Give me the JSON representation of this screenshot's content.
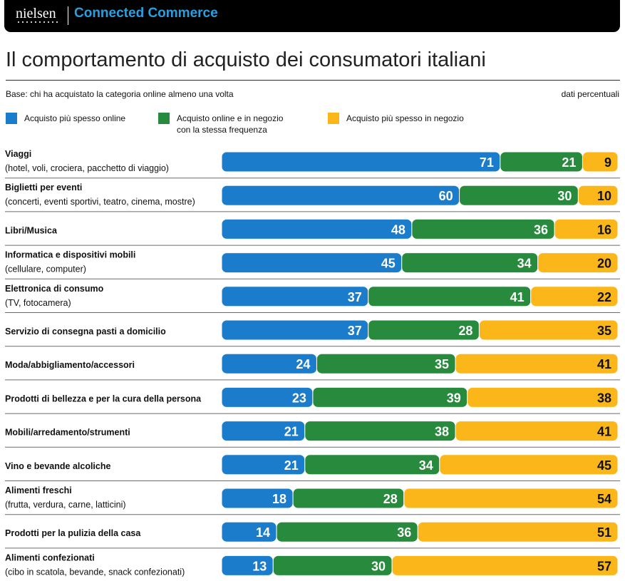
{
  "header": {
    "logo": "nielsen",
    "title": "Connected Commerce"
  },
  "page_title": "Il comportamento di acquisto dei consumatori italiani",
  "base_note": "Base: chi ha acquistato la categoria online almeno una volta",
  "units_note": "dati percentuali",
  "colors": {
    "blue": "#1b7ccc",
    "green": "#288a3c",
    "yellow": "#fbb71a",
    "row_rule": "#6b6b6b",
    "value_dark": "#111111",
    "value_light": "#ffffff"
  },
  "chart_data": {
    "type": "bar",
    "orientation": "horizontal",
    "stacked": true,
    "title": "Il comportamento di acquisto dei consumatori italiani",
    "xlabel": "",
    "ylabel": "",
    "xlim": [
      0,
      101
    ],
    "categories": [
      {
        "name": "Viaggi",
        "sub": "(hotel, voli, crociera, pacchetto di viaggio)"
      },
      {
        "name": "Biglietti per eventi",
        "sub": "(concerti, eventi sportivi, teatro, cinema, mostre)"
      },
      {
        "name": "Libri/Musica",
        "sub": ""
      },
      {
        "name": "Informatica e dispositivi mobili",
        "sub": "(cellulare, computer)"
      },
      {
        "name": "Elettronica di consumo",
        "sub": "(TV, fotocamera)"
      },
      {
        "name": "Servizio di consegna pasti a domicilio",
        "sub": ""
      },
      {
        "name": "Moda/abbigliamento/accessori",
        "sub": ""
      },
      {
        "name": "Prodotti di bellezza e per la cura della persona",
        "sub": ""
      },
      {
        "name": "Mobili/arredamento/strumenti",
        "sub": ""
      },
      {
        "name": "Vino e bevande alcoliche",
        "sub": ""
      },
      {
        "name": "Alimenti freschi",
        "sub": "(frutta, verdura, carne, latticini)"
      },
      {
        "name": "Prodotti per la pulizia della casa",
        "sub": ""
      },
      {
        "name": "Alimenti confezionati",
        "sub": "(cibo in scatola, bevande, snack confezionati)"
      }
    ],
    "series": [
      {
        "name": "Acquisto più spesso online",
        "color": "#1b7ccc",
        "values": [
          71,
          60,
          48,
          45,
          37,
          37,
          24,
          23,
          21,
          21,
          18,
          14,
          13
        ]
      },
      {
        "name": "Acquisto online e in negozio con la stessa frequenza",
        "color": "#288a3c",
        "values": [
          21,
          30,
          36,
          34,
          41,
          28,
          35,
          39,
          38,
          34,
          28,
          36,
          30
        ]
      },
      {
        "name": "Acquisto più spesso in negozio",
        "color": "#fbb71a",
        "values": [
          9,
          10,
          16,
          20,
          22,
          35,
          41,
          38,
          41,
          45,
          54,
          51,
          57
        ]
      }
    ],
    "legend": {
      "position": "top-left",
      "items": [
        {
          "line1": "Acquisto più spesso online",
          "line2": ""
        },
        {
          "line1": "Acquisto online e in negozio",
          "line2": "con la stessa frequenza"
        },
        {
          "line1": "Acquisto più spesso in negozio",
          "line2": ""
        }
      ]
    }
  }
}
